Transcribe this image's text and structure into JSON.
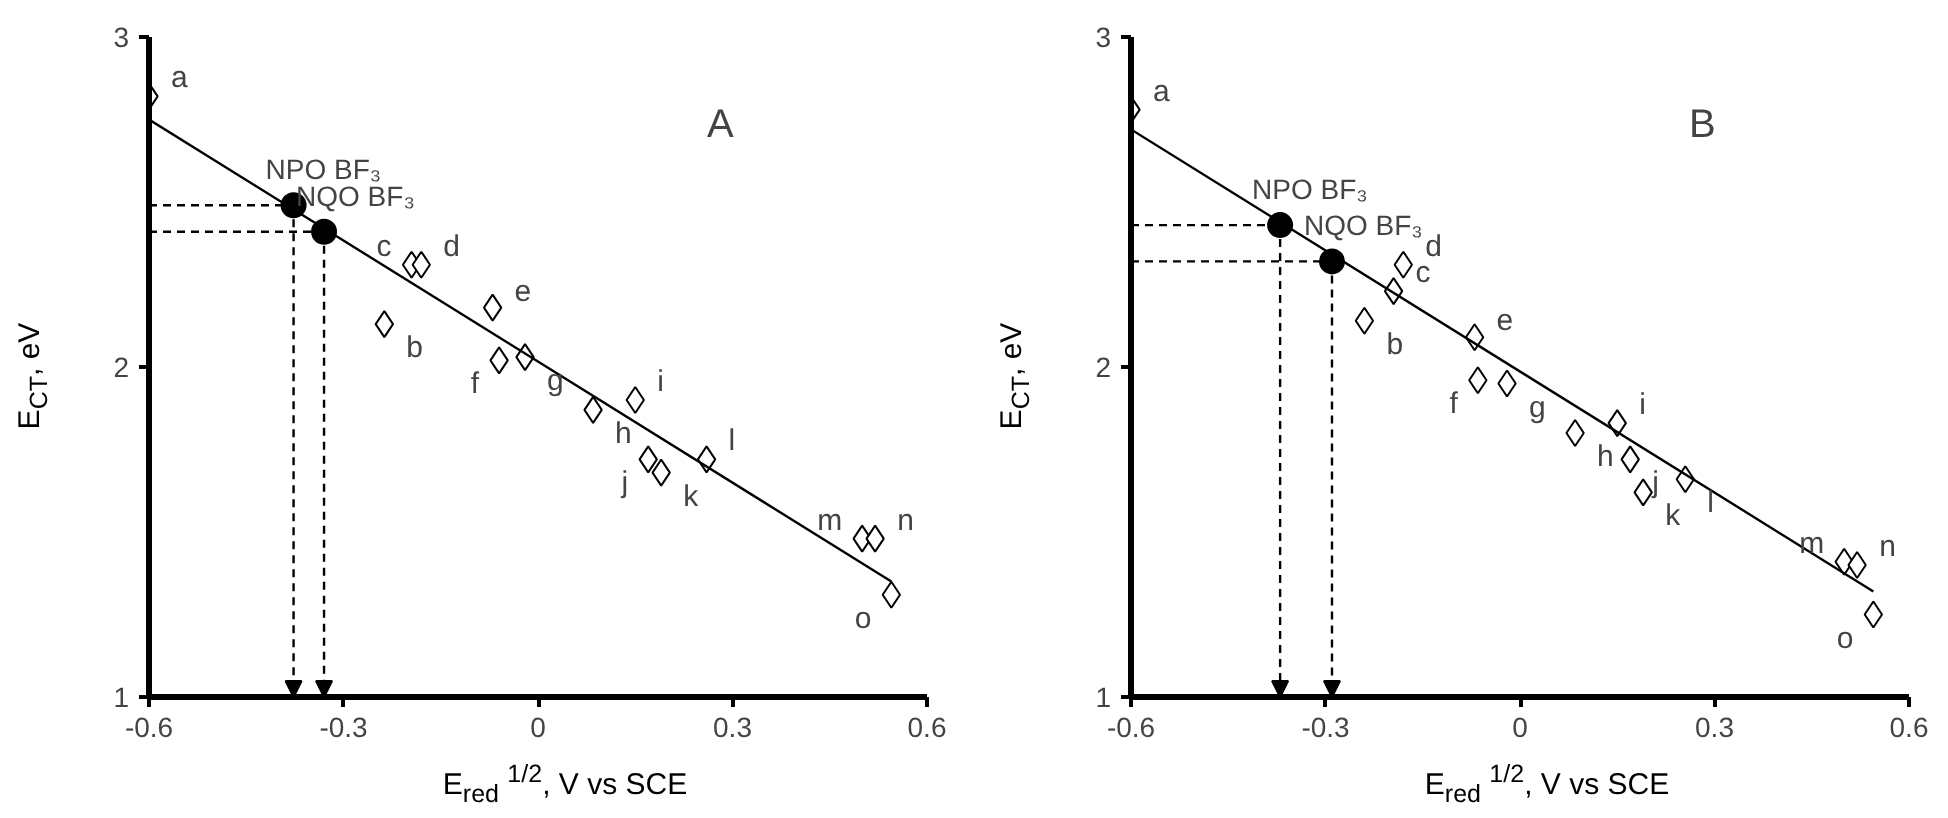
{
  "chart_data": [
    {
      "type": "scatter",
      "title": "A",
      "xlabel": "E$_{red}$ $^{1/2}$, V vs SCE",
      "ylabel": "E$_{CT}$, eV",
      "xlim": [
        -0.6,
        0.6
      ],
      "xticks": [
        -0.6,
        -0.3,
        0,
        0.3,
        0.6
      ],
      "ylim": [
        1,
        3
      ],
      "yticks": [
        1,
        2,
        3
      ],
      "grid": false,
      "series": [
        {
          "marker": "diamond",
          "color": "#000000",
          "x": [
            -0.6,
            -0.237,
            -0.195,
            -0.18,
            -0.07,
            -0.06,
            -0.02,
            0.085,
            0.15,
            0.17,
            0.19,
            0.26,
            0.5,
            0.52,
            0.545
          ],
          "values": [
            2.82,
            2.13,
            2.31,
            2.31,
            2.18,
            2.02,
            2.03,
            1.87,
            1.9,
            1.72,
            1.68,
            1.72,
            1.48,
            1.48,
            1.31
          ]
        },
        {
          "marker": "circle",
          "color": "#000000",
          "line_style": "dashed",
          "x": [
            -0.377,
            -0.33
          ],
          "values": [
            2.49,
            2.41
          ]
        },
        {
          "type": "line",
          "marker": "none",
          "color": "#000000",
          "x": [
            -0.6,
            0.545
          ],
          "values": [
            2.75,
            1.35
          ]
        }
      ],
      "annotations": [
        {
          "text": "a",
          "x": -0.6,
          "y": 2.82
        },
        {
          "text": "b",
          "x": -0.237,
          "y": 2.13
        },
        {
          "text": "c",
          "x": -0.195,
          "y": 2.31
        },
        {
          "text": "d",
          "x": -0.18,
          "y": 2.31
        },
        {
          "text": "e",
          "x": -0.07,
          "y": 2.18
        },
        {
          "text": "f",
          "x": -0.06,
          "y": 2.02
        },
        {
          "text": "g",
          "x": -0.02,
          "y": 2.03
        },
        {
          "text": "h",
          "x": 0.085,
          "y": 1.87
        },
        {
          "text": "i",
          "x": 0.15,
          "y": 1.9
        },
        {
          "text": "j",
          "x": 0.17,
          "y": 1.72
        },
        {
          "text": "k",
          "x": 0.19,
          "y": 1.68
        },
        {
          "text": "l",
          "x": 0.26,
          "y": 1.72
        },
        {
          "text": "m",
          "x": 0.5,
          "y": 1.48
        },
        {
          "text": "n",
          "x": 0.52,
          "y": 1.48
        },
        {
          "text": "o",
          "x": 0.545,
          "y": 1.31
        },
        {
          "text": "NPO BF₃",
          "x": -0.377,
          "y": 2.49
        },
        {
          "text": "NQO BF₃",
          "x": -0.33,
          "y": 2.41
        }
      ]
    },
    {
      "type": "scatter",
      "title": "B",
      "xlabel": "E$_{red}$ $^{1/2}$, V vs SCE",
      "ylabel": "E$_{CT}$, eV",
      "xlim": [
        -0.6,
        0.6
      ],
      "xticks": [
        -0.6,
        -0.3,
        0,
        0.3,
        0.6
      ],
      "ylim": [
        1,
        3
      ],
      "yticks": [
        1,
        2,
        3
      ],
      "grid": false,
      "series": [
        {
          "marker": "diamond",
          "color": "#000000",
          "x": [
            -0.6,
            -0.24,
            -0.195,
            -0.18,
            -0.07,
            -0.065,
            -0.02,
            0.085,
            0.15,
            0.17,
            0.19,
            0.255,
            0.5,
            0.52,
            0.545
          ],
          "values": [
            2.78,
            2.14,
            2.23,
            2.31,
            2.09,
            1.96,
            1.95,
            1.8,
            1.83,
            1.72,
            1.62,
            1.66,
            1.41,
            1.4,
            1.25
          ]
        },
        {
          "marker": "circle",
          "color": "#000000",
          "line_style": "dashed",
          "x": [
            -0.37,
            -0.29
          ],
          "values": [
            2.43,
            2.32
          ]
        },
        {
          "type": "line",
          "marker": "none",
          "color": "#000000",
          "x": [
            -0.6,
            0.545
          ],
          "values": [
            2.72,
            1.32
          ]
        }
      ],
      "annotations": [
        {
          "text": "a",
          "x": -0.6,
          "y": 2.78
        },
        {
          "text": "b",
          "x": -0.24,
          "y": 2.14
        },
        {
          "text": "c",
          "x": -0.195,
          "y": 2.23
        },
        {
          "text": "d",
          "x": -0.18,
          "y": 2.31
        },
        {
          "text": "e",
          "x": -0.07,
          "y": 2.09
        },
        {
          "text": "f",
          "x": -0.065,
          "y": 1.96
        },
        {
          "text": "g",
          "x": -0.02,
          "y": 1.95
        },
        {
          "text": "h",
          "x": 0.085,
          "y": 1.8
        },
        {
          "text": "i",
          "x": 0.15,
          "y": 1.83
        },
        {
          "text": "j",
          "x": 0.17,
          "y": 1.72
        },
        {
          "text": "k",
          "x": 0.19,
          "y": 1.62
        },
        {
          "text": "l",
          "x": 0.255,
          "y": 1.66
        },
        {
          "text": "m",
          "x": 0.5,
          "y": 1.41
        },
        {
          "text": "n",
          "x": 0.52,
          "y": 1.4
        },
        {
          "text": "o",
          "x": 0.545,
          "y": 1.25
        },
        {
          "text": "NPO BF₃",
          "x": -0.37,
          "y": 2.43
        },
        {
          "text": "NQO BF₃",
          "x": -0.29,
          "y": 2.32
        }
      ]
    }
  ]
}
